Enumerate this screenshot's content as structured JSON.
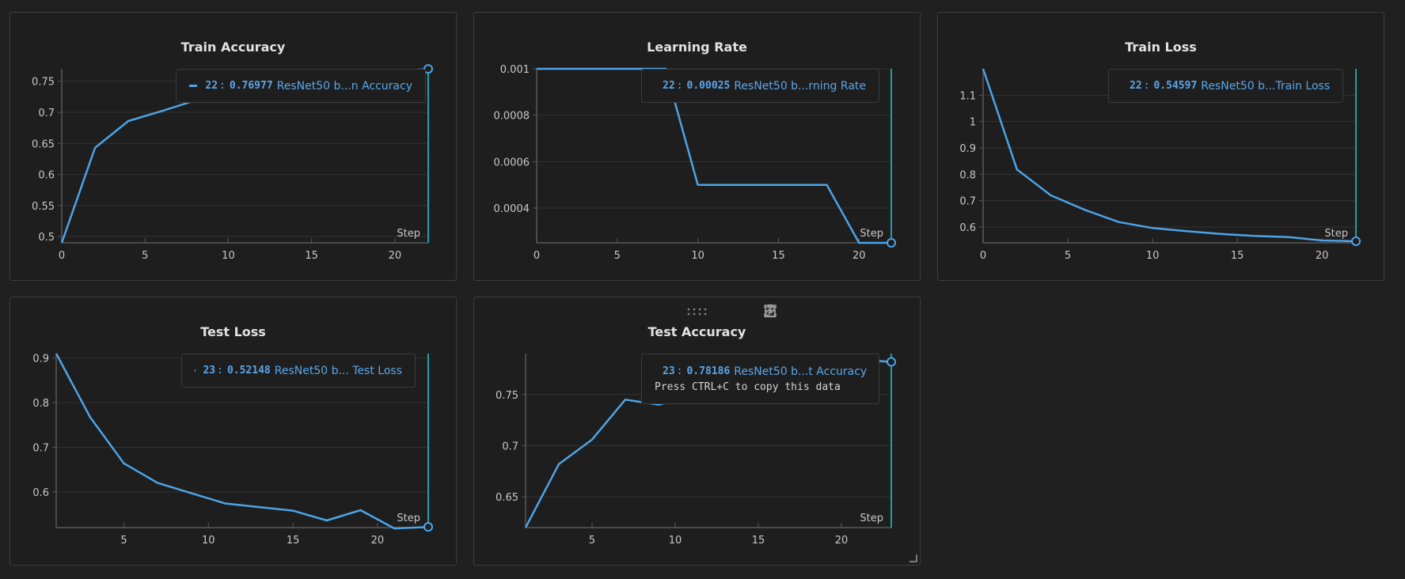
{
  "accent": "#4da3e6",
  "panels": [
    {
      "id": "train-accuracy",
      "legend": {
        "step": "22",
        "value": "0.76977",
        "name": "ResNet50 b...n Accuracy"
      },
      "toolbar": false,
      "chart_data": {
        "type": "line",
        "title": "Train Accuracy",
        "xlabel": "Step",
        "ylabel": "",
        "xlim": [
          0,
          22
        ],
        "ylim": [
          0.49,
          0.77
        ],
        "xticks": [
          0,
          5,
          10,
          15,
          20
        ],
        "yticks": [
          0.5,
          0.55,
          0.6,
          0.65,
          0.7,
          0.75
        ],
        "ytick_labels": [
          "0.5",
          "0.55",
          "0.6",
          "0.65",
          "0.7",
          "0.75"
        ],
        "grid": true,
        "legend_position": "top-right",
        "series": [
          {
            "x": [
              0,
              2,
              4,
              6,
              8,
              10,
              12,
              14,
              16,
              18,
              20,
              22
            ],
            "y": [
              0.49,
              0.643,
              0.686,
              0.702,
              0.719,
              0.731,
              0.741,
              0.749,
              0.755,
              0.761,
              0.766,
              0.76977
            ]
          }
        ],
        "marker": {
          "x": 22,
          "y": 0.76977
        }
      }
    },
    {
      "id": "learning-rate",
      "legend": {
        "step": "22",
        "value": "0.00025",
        "name": "ResNet50 b...rning Rate"
      },
      "toolbar": false,
      "chart_data": {
        "type": "line",
        "title": "Learning Rate",
        "xlabel": "Step",
        "ylabel": "",
        "xlim": [
          0,
          22
        ],
        "ylim": [
          0.00025,
          0.001
        ],
        "xticks": [
          0,
          5,
          10,
          15,
          20
        ],
        "yticks": [
          0.0004,
          0.0006,
          0.0008,
          0.001
        ],
        "ytick_labels": [
          "0.0004",
          "0.0006",
          "0.0008",
          "0.001"
        ],
        "grid": true,
        "legend_position": "top-right",
        "series": [
          {
            "x": [
              0,
              8,
              10,
              18,
              20,
              22
            ],
            "y": [
              0.001,
              0.001,
              0.0005,
              0.0005,
              0.00025,
              0.00025
            ]
          }
        ],
        "marker": {
          "x": 22,
          "y": 0.00025
        }
      }
    },
    {
      "id": "train-loss",
      "legend": {
        "step": "22",
        "value": "0.54597",
        "name": "ResNet50 b...Train Loss"
      },
      "toolbar": false,
      "chart_data": {
        "type": "line",
        "title": "Train Loss",
        "xlabel": "Step",
        "ylabel": "",
        "xlim": [
          0,
          22
        ],
        "ylim": [
          0.54,
          1.2
        ],
        "xticks": [
          0,
          5,
          10,
          15,
          20
        ],
        "yticks": [
          0.6,
          0.7,
          0.8,
          0.9,
          1,
          1.1
        ],
        "ytick_labels": [
          "0.6",
          "0.7",
          "0.8",
          "0.9",
          "1",
          "1.1"
        ],
        "grid": true,
        "legend_position": "top-right",
        "series": [
          {
            "x": [
              0,
              2,
              4,
              6,
              8,
              10,
              12,
              14,
              16,
              18,
              20,
              22
            ],
            "y": [
              1.2,
              0.818,
              0.72,
              0.665,
              0.619,
              0.596,
              0.584,
              0.574,
              0.566,
              0.562,
              0.549,
              0.54597
            ]
          }
        ],
        "marker": {
          "x": 22,
          "y": 0.54597
        }
      }
    },
    {
      "id": "test-loss",
      "legend": {
        "step": "23",
        "value": "0.52148",
        "name": "ResNet50 b... Test Loss"
      },
      "toolbar": false,
      "chart_data": {
        "type": "line",
        "title": "Test Loss",
        "xlabel": "Step",
        "ylabel": "",
        "xlim": [
          1,
          23
        ],
        "ylim": [
          0.52,
          0.91
        ],
        "xticks": [
          5,
          10,
          15,
          20
        ],
        "yticks": [
          0.6,
          0.7,
          0.8,
          0.9
        ],
        "ytick_labels": [
          "0.6",
          "0.7",
          "0.8",
          "0.9"
        ],
        "grid": true,
        "legend_position": "top-right",
        "series": [
          {
            "x": [
              1,
              3,
              5,
              7,
              9,
              11,
              13,
              15,
              17,
              19,
              21,
              23
            ],
            "y": [
              0.91,
              0.768,
              0.664,
              0.62,
              0.597,
              0.574,
              0.566,
              0.558,
              0.536,
              0.559,
              0.518,
              0.52148
            ]
          }
        ],
        "marker": {
          "x": 23,
          "y": 0.52148
        }
      }
    },
    {
      "id": "test-accuracy",
      "legend": {
        "step": "23",
        "value": "0.78186",
        "name": "ResNet50 b...t Accuracy",
        "hint": "Press CTRL+C to copy this data"
      },
      "toolbar": true,
      "chart_data": {
        "type": "line",
        "title": "Test Accuracy",
        "xlabel": "Step",
        "ylabel": "",
        "xlim": [
          1,
          23
        ],
        "ylim": [
          0.62,
          0.79
        ],
        "xticks": [
          5,
          10,
          15,
          20
        ],
        "yticks": [
          0.65,
          0.7,
          0.75
        ],
        "ytick_labels": [
          "0.65",
          "0.7",
          "0.75"
        ],
        "grid": true,
        "legend_position": "top-right",
        "series": [
          {
            "x": [
              1,
              3,
              5,
              7,
              9,
              11,
              13,
              15,
              17,
              19,
              21,
              23
            ],
            "y": [
              0.62,
              0.682,
              0.706,
              0.745,
              0.74,
              0.748,
              0.756,
              0.763,
              0.77,
              0.776,
              0.784,
              0.78186
            ]
          }
        ],
        "marker": {
          "x": 23,
          "y": 0.78186
        }
      }
    }
  ]
}
